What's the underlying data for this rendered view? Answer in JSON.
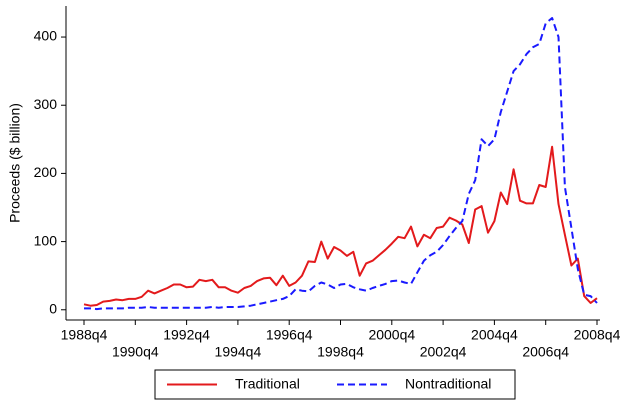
{
  "chart_data": {
    "type": "line",
    "ylabel": "Proceeds ($ billion)",
    "categories": [
      "1988q4",
      null,
      null,
      null,
      null,
      null,
      null,
      null,
      "1990q4",
      null,
      null,
      null,
      null,
      null,
      null,
      null,
      "1992q4",
      null,
      null,
      null,
      null,
      null,
      null,
      null,
      "1994q4",
      null,
      null,
      null,
      null,
      null,
      null,
      null,
      "1996q4",
      null,
      null,
      null,
      null,
      null,
      null,
      null,
      "1998q4",
      null,
      null,
      null,
      null,
      null,
      null,
      null,
      "2000q4",
      null,
      null,
      null,
      null,
      null,
      null,
      null,
      "2002q4",
      null,
      null,
      null,
      null,
      null,
      null,
      null,
      "2004q4",
      null,
      null,
      null,
      null,
      null,
      null,
      null,
      "2006q4",
      null,
      null,
      null,
      null,
      null,
      null,
      null,
      "2008q4"
    ],
    "series": [
      {
        "name": "Traditional",
        "color": "#e31a1c",
        "dash": false,
        "values": [
          8,
          6,
          7,
          12,
          13,
          15,
          14,
          16,
          16,
          19,
          28,
          24,
          28,
          32,
          37,
          37,
          33,
          34,
          44,
          42,
          44,
          33,
          33,
          28,
          25,
          32,
          35,
          42,
          46,
          47,
          36,
          50,
          35,
          40,
          50,
          71,
          70,
          100,
          75,
          92,
          87,
          79,
          85,
          50,
          68,
          72,
          80,
          88,
          97,
          107,
          105,
          122,
          93,
          110,
          105,
          120,
          122,
          135,
          131,
          125,
          98,
          147,
          152,
          113,
          130,
          172,
          155,
          206,
          160,
          156,
          156,
          183,
          180,
          239,
          155,
          110,
          65,
          75,
          20,
          10,
          17
        ]
      },
      {
        "name": "Nontraditional",
        "color": "#1a1aff",
        "dash": true,
        "values": [
          2,
          2,
          1,
          2,
          2,
          2,
          2,
          3,
          3,
          3,
          4,
          3,
          3,
          3,
          3,
          3,
          3,
          3,
          3,
          3,
          4,
          3,
          4,
          4,
          4,
          5,
          6,
          8,
          10,
          12,
          14,
          16,
          20,
          30,
          28,
          27,
          35,
          40,
          37,
          32,
          37,
          38,
          33,
          30,
          28,
          32,
          35,
          38,
          42,
          43,
          40,
          38,
          55,
          72,
          80,
          85,
          95,
          108,
          120,
          130,
          170,
          190,
          250,
          240,
          250,
          290,
          320,
          350,
          360,
          375,
          385,
          390,
          420,
          428,
          400,
          180,
          120,
          60,
          22,
          20,
          10
        ]
      }
    ],
    "ylim": [
      -15,
      447
    ],
    "yticks": [
      0,
      100,
      200,
      300,
      400
    ]
  }
}
